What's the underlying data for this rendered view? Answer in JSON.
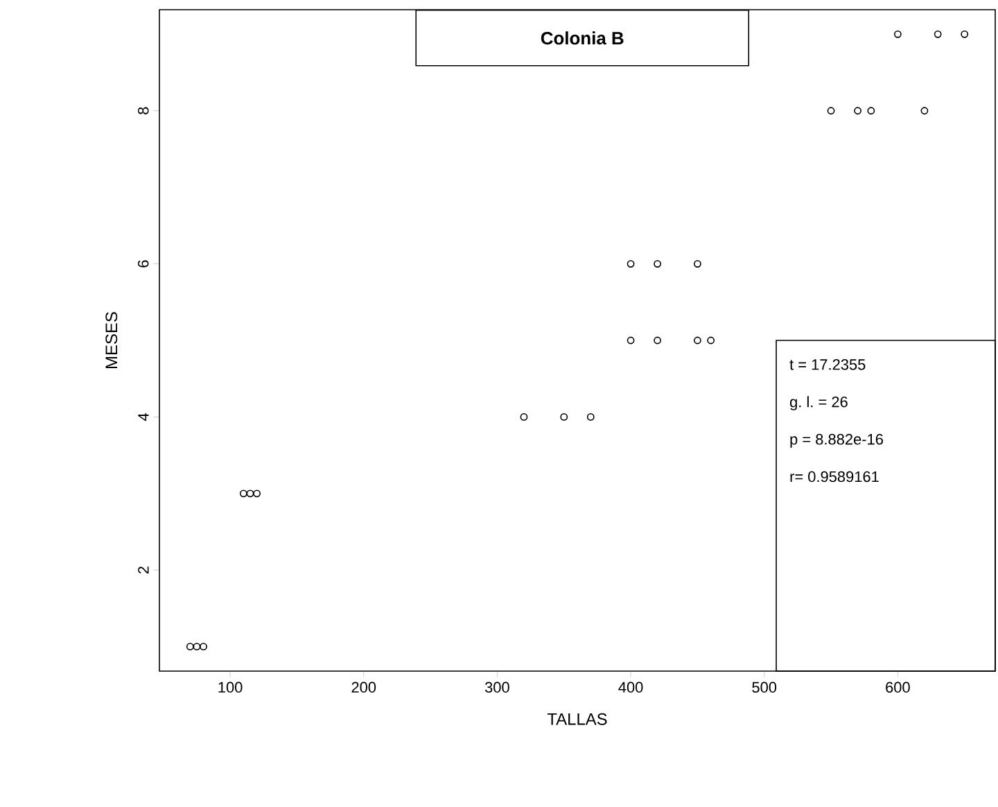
{
  "chart_data": {
    "type": "scatter",
    "title": "Colonia B",
    "xlabel": "TALLAS",
    "ylabel": "MESES",
    "x": [
      70,
      75,
      80,
      110,
      115,
      120,
      320,
      350,
      370,
      400,
      420,
      450,
      460,
      400,
      420,
      450,
      550,
      570,
      580,
      620,
      600,
      630,
      650
    ],
    "values": [
      1,
      1,
      1,
      3,
      3,
      3,
      4,
      4,
      4,
      5,
      5,
      5,
      5,
      6,
      6,
      6,
      8,
      8,
      8,
      8,
      9,
      9,
      9
    ],
    "color": "#000000",
    "marker": "circle",
    "grid": false,
    "xlim": [
      47,
      673
    ],
    "ylim": [
      0.68,
      9.32
    ],
    "xticks": [
      100,
      200,
      300,
      400,
      500,
      600
    ],
    "yticks": [
      2,
      4,
      6,
      8
    ],
    "annotations": [
      "t = 17.2355",
      "g. l. = 26",
      "p = 8.882e-16",
      "r= 0.9589161"
    ]
  }
}
